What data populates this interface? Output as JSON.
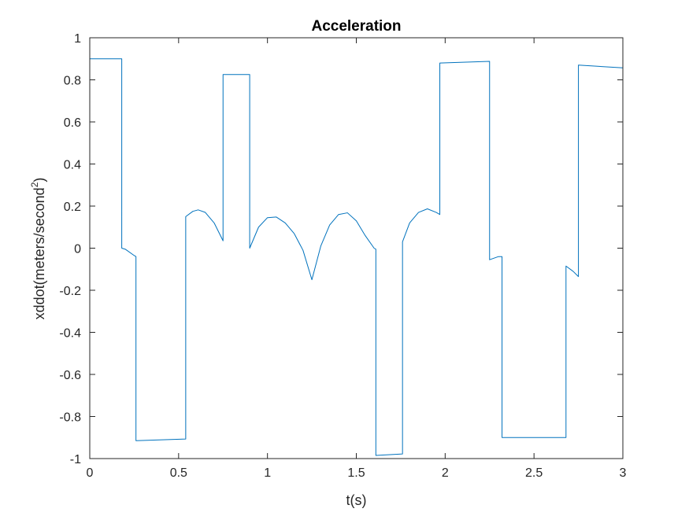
{
  "chart_data": {
    "type": "line",
    "title": "Acceleration",
    "xlabel": "t(s)",
    "ylabel_main": "xddot(meters/second",
    "ylabel_sup": "2",
    "ylabel_close": ")",
    "xlim": [
      0,
      3
    ],
    "ylim": [
      -1,
      1
    ],
    "xticks": [
      0,
      0.5,
      1,
      1.5,
      2,
      2.5,
      3
    ],
    "xtick_labels": [
      "0",
      "0.5",
      "1",
      "1.5",
      "2",
      "2.5",
      "3"
    ],
    "yticks": [
      -1,
      -0.8,
      -0.6,
      -0.4,
      -0.2,
      0,
      0.2,
      0.4,
      0.6,
      0.8,
      1
    ],
    "ytick_labels": [
      "-1",
      "-0.8",
      "-0.6",
      "-0.4",
      "-0.2",
      "0",
      "0.2",
      "0.4",
      "0.6",
      "0.8",
      "1"
    ],
    "grid": false,
    "series": [
      {
        "color": "#0072BD",
        "x": [
          0,
          0.18,
          0.18,
          0.2,
          0.25,
          0.26,
          0.26,
          0.54,
          0.54,
          0.58,
          0.61,
          0.65,
          0.7,
          0.75,
          0.75,
          0.9,
          0.9,
          0.95,
          1.0,
          1.05,
          1.1,
          1.15,
          1.2,
          1.25,
          1.3,
          1.35,
          1.4,
          1.45,
          1.5,
          1.55,
          1.6,
          1.61,
          1.61,
          1.76,
          1.76,
          1.8,
          1.85,
          1.9,
          1.95,
          1.97,
          1.97,
          2.25,
          2.25,
          2.3,
          2.32,
          2.32,
          2.68,
          2.68,
          2.72,
          2.75,
          2.75,
          3.0
        ],
        "y": [
          0.9,
          0.9,
          0.0,
          -0.005,
          -0.035,
          -0.04,
          -0.915,
          -0.907,
          0.15,
          0.175,
          0.182,
          0.17,
          0.12,
          0.035,
          0.825,
          0.825,
          0.0,
          0.1,
          0.145,
          0.148,
          0.12,
          0.07,
          -0.01,
          -0.15,
          0.01,
          0.11,
          0.16,
          0.168,
          0.13,
          0.06,
          0.0,
          -0.005,
          -0.985,
          -0.978,
          0.03,
          0.12,
          0.17,
          0.187,
          0.17,
          0.16,
          0.88,
          0.888,
          -0.055,
          -0.04,
          -0.04,
          -0.9,
          -0.9,
          -0.085,
          -0.11,
          -0.135,
          0.87,
          0.857
        ]
      }
    ]
  }
}
